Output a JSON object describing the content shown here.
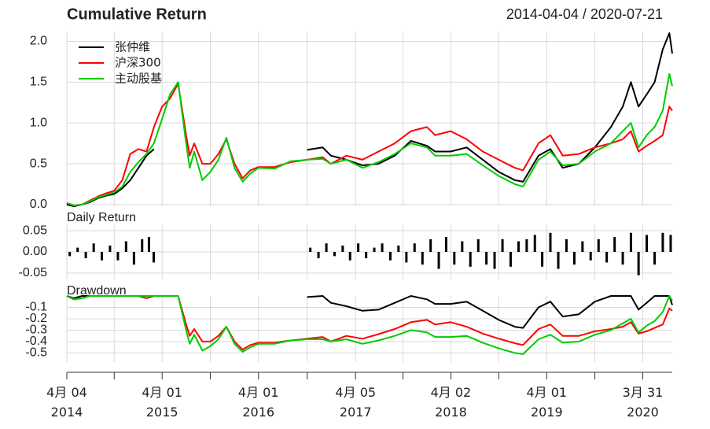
{
  "chart_data": [
    {
      "type": "line",
      "title": "Cumulative Return",
      "subtitle": "2014-04-04 / 2020-07-21",
      "legend": "top-left",
      "grid": true,
      "xlim": [
        "2014-04-04",
        "2020-07-21"
      ],
      "ylim": [
        -0.02,
        2.12
      ],
      "yticks": [
        {
          "value": 0,
          "label": "0.0"
        },
        {
          "value": 0.5,
          "label": "0.5"
        },
        {
          "value": 1,
          "label": "1.0"
        },
        {
          "value": 1.5,
          "label": "1.5"
        },
        {
          "value": 2,
          "label": "2.0"
        }
      ],
      "x": [
        "2014-04-04",
        "2014-05-01",
        "2014-06-01",
        "2014-07-01",
        "2014-08-01",
        "2014-09-01",
        "2014-10-01",
        "2014-11-01",
        "2014-12-01",
        "2015-01-01",
        "2015-02-01",
        "2015-03-01",
        "2015-04-01",
        "2015-05-01",
        "2015-06-01",
        "2015-07-01",
        "2015-07-15",
        "2015-08-01",
        "2015-09-01",
        "2015-10-01",
        "2015-11-01",
        "2015-12-01",
        "2016-01-01",
        "2016-02-01",
        "2016-03-01",
        "2016-04-01",
        "2016-06-01",
        "2016-08-01",
        "2016-10-03",
        "2016-12-01",
        "2017-01-01",
        "2017-03-01",
        "2017-05-01",
        "2017-07-01",
        "2017-09-01",
        "2017-11-01",
        "2018-01-01",
        "2018-02-01",
        "2018-04-01",
        "2018-06-01",
        "2018-08-01",
        "2018-10-01",
        "2018-12-01",
        "2019-01-01",
        "2019-03-01",
        "2019-04-15",
        "2019-06-01",
        "2019-08-01",
        "2019-10-01",
        "2019-12-01",
        "2020-01-15",
        "2020-02-15",
        "2020-03-15",
        "2020-04-15",
        "2020-05-15",
        "2020-06-15",
        "2020-07-10",
        "2020-07-21"
      ],
      "series": [
        {
          "name": "张仲维",
          "color": "#000000",
          "values": [
            0,
            -0.02,
            0,
            0.03,
            0.08,
            0.11,
            0.13,
            0.2,
            0.3,
            0.45,
            0.6,
            0.68,
            null,
            null,
            null,
            null,
            null,
            null,
            null,
            null,
            null,
            null,
            null,
            null,
            null,
            null,
            null,
            null,
            0.67,
            0.7,
            0.6,
            0.55,
            0.48,
            0.5,
            0.6,
            0.78,
            0.72,
            0.65,
            0.65,
            0.7,
            0.55,
            0.4,
            0.3,
            0.28,
            0.6,
            0.68,
            0.45,
            0.5,
            0.7,
            0.95,
            1.2,
            1.5,
            1.2,
            1.35,
            1.5,
            1.9,
            2.1,
            1.85
          ]
        },
        {
          "name": "沪深300",
          "color": "#ff0000",
          "values": [
            0.02,
            -0.01,
            0,
            0.05,
            0.1,
            0.14,
            0.17,
            0.3,
            0.62,
            0.68,
            0.65,
            0.95,
            1.2,
            1.3,
            1.48,
            0.85,
            0.6,
            0.75,
            0.5,
            0.5,
            0.62,
            0.8,
            0.5,
            0.32,
            0.42,
            0.46,
            0.46,
            0.52,
            0.55,
            0.58,
            0.5,
            0.6,
            0.55,
            0.65,
            0.75,
            0.9,
            0.95,
            0.85,
            0.9,
            0.8,
            0.65,
            0.55,
            0.45,
            0.42,
            0.75,
            0.85,
            0.6,
            0.62,
            0.7,
            0.75,
            0.8,
            0.9,
            0.65,
            0.72,
            0.78,
            0.85,
            1.2,
            1.15
          ]
        },
        {
          "name": "主动股基",
          "color": "#00cc00",
          "values": [
            0.02,
            -0.01,
            0,
            0.04,
            0.09,
            0.12,
            0.15,
            0.22,
            0.4,
            0.52,
            0.62,
            0.75,
            1.05,
            1.35,
            1.5,
            0.75,
            0.45,
            0.65,
            0.3,
            0.4,
            0.55,
            0.82,
            0.45,
            0.28,
            0.38,
            0.45,
            0.44,
            0.53,
            0.55,
            0.56,
            0.5,
            0.55,
            0.45,
            0.52,
            0.62,
            0.75,
            0.7,
            0.6,
            0.6,
            0.62,
            0.48,
            0.35,
            0.25,
            0.22,
            0.55,
            0.65,
            0.48,
            0.5,
            0.65,
            0.75,
            0.9,
            1.0,
            0.7,
            0.85,
            0.95,
            1.15,
            1.6,
            1.45
          ]
        }
      ]
    },
    {
      "type": "bar",
      "title": "Daily Return",
      "grid": true,
      "color": "#000000",
      "xlim": [
        "2014-04-04",
        "2020-07-21"
      ],
      "ylim": [
        -0.065,
        0.065
      ],
      "yticks": [
        {
          "value": 0.05,
          "label": "0.05"
        },
        {
          "value": 0,
          "label": "0.00"
        },
        {
          "value": -0.05,
          "label": "-0.05"
        }
      ],
      "x": [
        "2014-04-15",
        "2014-05-15",
        "2014-06-15",
        "2014-07-15",
        "2014-08-15",
        "2014-09-15",
        "2014-10-15",
        "2014-11-15",
        "2014-12-15",
        "2015-01-15",
        "2015-02-10",
        "2015-02-28",
        "2016-10-15",
        "2016-11-15",
        "2016-12-15",
        "2017-01-15",
        "2017-02-15",
        "2017-03-15",
        "2017-04-15",
        "2017-05-15",
        "2017-06-15",
        "2017-07-15",
        "2017-08-15",
        "2017-09-15",
        "2017-10-15",
        "2017-11-15",
        "2017-12-15",
        "2018-01-15",
        "2018-02-15",
        "2018-03-15",
        "2018-04-15",
        "2018-05-15",
        "2018-06-15",
        "2018-07-15",
        "2018-08-15",
        "2018-09-15",
        "2018-10-15",
        "2018-11-15",
        "2018-12-15",
        "2019-01-15",
        "2019-02-15",
        "2019-03-15",
        "2019-04-15",
        "2019-05-15",
        "2019-06-15",
        "2019-07-15",
        "2019-08-15",
        "2019-09-15",
        "2019-10-15",
        "2019-11-15",
        "2019-12-15",
        "2020-01-15",
        "2020-02-15",
        "2020-03-15",
        "2020-04-15",
        "2020-05-15",
        "2020-06-15",
        "2020-07-15"
      ],
      "values": [
        -0.01,
        0.01,
        -0.015,
        0.02,
        -0.02,
        0.015,
        -0.02,
        0.025,
        -0.03,
        0.03,
        0.035,
        -0.025,
        0.01,
        -0.015,
        0.02,
        -0.01,
        0.015,
        -0.02,
        0.02,
        -0.015,
        0.01,
        0.02,
        -0.02,
        0.015,
        -0.025,
        0.02,
        -0.03,
        0.03,
        -0.04,
        0.035,
        -0.03,
        0.025,
        -0.035,
        0.03,
        -0.03,
        -0.04,
        0.03,
        -0.035,
        0.025,
        0.03,
        0.04,
        -0.035,
        0.045,
        -0.04,
        0.03,
        -0.03,
        0.025,
        -0.02,
        0.03,
        -0.025,
        0.035,
        -0.03,
        0.045,
        -0.055,
        0.04,
        -0.03,
        0.045,
        0.04
      ]
    },
    {
      "type": "line",
      "title": "Drawdown",
      "grid": true,
      "xlim": [
        "2014-04-04",
        "2020-07-21"
      ],
      "ylim": [
        -0.58,
        0
      ],
      "yticks": [
        -0.1,
        -0.2,
        -0.3,
        -0.4,
        -0.5
      ],
      "xticks": [
        {
          "value": "2014-04-04",
          "label": "4月 04\n2014"
        },
        {
          "value": "2015-04-01",
          "label": "4月 01\n2015"
        },
        {
          "value": "2016-04-01",
          "label": "4月 01\n2016"
        },
        {
          "value": "2017-04-05",
          "label": "4月 05\n2017"
        },
        {
          "value": "2018-04-02",
          "label": "4月 02\n2018"
        },
        {
          "value": "2019-04-01",
          "label": "4月 01\n2019"
        },
        {
          "value": "2020-03-31",
          "label": "3月 31\n2020"
        }
      ],
      "xminor": [
        "2014-10-01",
        "2015-10-01",
        "2016-10-03",
        "2017-10-02",
        "2018-10-01",
        "2019-10-01"
      ],
      "x": [
        "2014-04-04",
        "2014-05-01",
        "2014-06-01",
        "2014-07-01",
        "2014-08-01",
        "2014-09-01",
        "2014-10-01",
        "2014-11-01",
        "2014-12-01",
        "2015-01-01",
        "2015-02-01",
        "2015-03-01",
        "2015-04-01",
        "2015-05-01",
        "2015-06-01",
        "2015-07-01",
        "2015-07-15",
        "2015-08-01",
        "2015-09-01",
        "2015-10-01",
        "2015-11-01",
        "2015-12-01",
        "2016-01-01",
        "2016-02-01",
        "2016-03-01",
        "2016-04-01",
        "2016-06-01",
        "2016-08-01",
        "2016-10-03",
        "2016-12-01",
        "2017-01-01",
        "2017-03-01",
        "2017-05-01",
        "2017-07-01",
        "2017-09-01",
        "2017-11-01",
        "2018-01-01",
        "2018-02-01",
        "2018-04-01",
        "2018-06-01",
        "2018-08-01",
        "2018-10-01",
        "2018-12-01",
        "2019-01-01",
        "2019-03-01",
        "2019-04-15",
        "2019-06-01",
        "2019-08-01",
        "2019-10-01",
        "2019-12-01",
        "2020-01-15",
        "2020-02-15",
        "2020-03-15",
        "2020-04-15",
        "2020-05-15",
        "2020-06-15",
        "2020-07-10",
        "2020-07-21"
      ],
      "series": [
        {
          "name": "张仲维",
          "color": "#000000",
          "values": [
            0,
            -0.02,
            0,
            0,
            0,
            0,
            0,
            0,
            0,
            0,
            0,
            0,
            null,
            null,
            null,
            null,
            null,
            null,
            null,
            null,
            null,
            null,
            null,
            null,
            null,
            null,
            null,
            null,
            -0.01,
            0,
            -0.06,
            -0.09,
            -0.13,
            -0.12,
            -0.06,
            0,
            -0.03,
            -0.07,
            -0.07,
            -0.05,
            -0.13,
            -0.21,
            -0.27,
            -0.28,
            -0.1,
            -0.05,
            -0.18,
            -0.16,
            -0.05,
            0,
            0,
            0,
            -0.12,
            -0.06,
            0,
            0,
            0,
            -0.08
          ]
        },
        {
          "name": "沪深300",
          "color": "#ff0000",
          "values": [
            0,
            -0.03,
            -0.02,
            0,
            0,
            0,
            0,
            0,
            0,
            0,
            -0.02,
            0,
            0,
            0,
            0,
            -0.25,
            -0.35,
            -0.29,
            -0.4,
            -0.4,
            -0.35,
            -0.27,
            -0.4,
            -0.47,
            -0.43,
            -0.41,
            -0.41,
            -0.39,
            -0.375,
            -0.36,
            -0.4,
            -0.35,
            -0.375,
            -0.335,
            -0.29,
            -0.23,
            -0.21,
            -0.25,
            -0.23,
            -0.27,
            -0.33,
            -0.375,
            -0.415,
            -0.43,
            -0.29,
            -0.25,
            -0.35,
            -0.35,
            -0.31,
            -0.29,
            -0.27,
            -0.23,
            -0.33,
            -0.31,
            -0.28,
            -0.25,
            -0.11,
            -0.13
          ]
        },
        {
          "name": "主动股基",
          "color": "#00cc00",
          "values": [
            0,
            -0.03,
            -0.02,
            0,
            0,
            0,
            0,
            0,
            0,
            0,
            0,
            0,
            0,
            0,
            0,
            -0.3,
            -0.42,
            -0.34,
            -0.48,
            -0.44,
            -0.38,
            -0.27,
            -0.42,
            -0.49,
            -0.45,
            -0.42,
            -0.42,
            -0.39,
            -0.38,
            -0.38,
            -0.4,
            -0.38,
            -0.42,
            -0.39,
            -0.35,
            -0.3,
            -0.32,
            -0.36,
            -0.36,
            -0.35,
            -0.41,
            -0.46,
            -0.5,
            -0.51,
            -0.38,
            -0.34,
            -0.41,
            -0.4,
            -0.34,
            -0.3,
            -0.24,
            -0.2,
            -0.32,
            -0.26,
            -0.22,
            -0.14,
            0,
            -0.04
          ]
        }
      ]
    }
  ]
}
